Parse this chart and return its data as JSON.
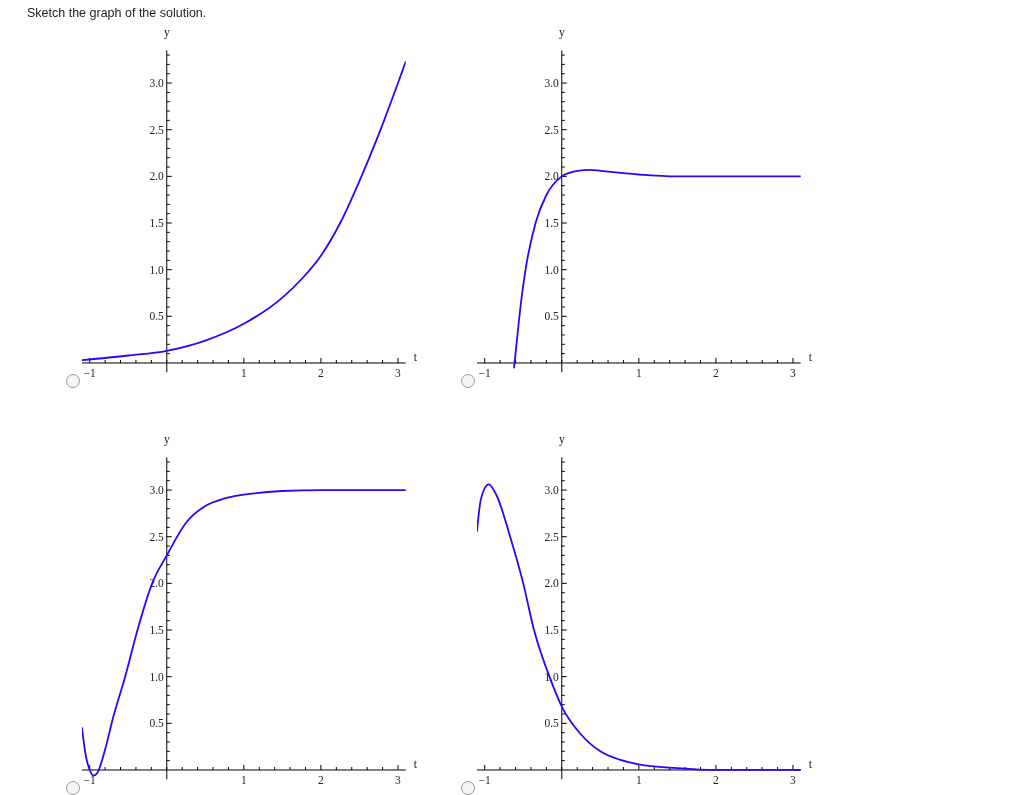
{
  "chart_data": [
    {
      "type": "line",
      "title": "Sketch the graph of the solution.",
      "xlabel": "t",
      "ylabel": "y",
      "xlim": [
        -1.1,
        3.1
      ],
      "ylim": [
        -0.1,
        3.35
      ],
      "grid": false,
      "marker": "none",
      "line_style": "solid",
      "xticks": [
        {
          "value": -1,
          "label": "−1"
        },
        {
          "value": -0.8,
          "label": null
        },
        {
          "value": -0.6,
          "label": null
        },
        {
          "value": -0.4,
          "label": null
        },
        {
          "value": -0.2,
          "label": null
        },
        {
          "value": 0,
          "label": null
        },
        {
          "value": 0.2,
          "label": null
        },
        {
          "value": 0.4,
          "label": null
        },
        {
          "value": 0.6,
          "label": null
        },
        {
          "value": 0.8,
          "label": null
        },
        1,
        {
          "value": 1.2,
          "label": null
        },
        {
          "value": 1.4,
          "label": null
        },
        {
          "value": 1.6,
          "label": null
        },
        {
          "value": 1.8,
          "label": null
        },
        2,
        {
          "value": 2.2,
          "label": null
        },
        {
          "value": 2.4,
          "label": null
        },
        {
          "value": 2.6,
          "label": null
        },
        {
          "value": 2.8,
          "label": null
        },
        3
      ],
      "yticks": [
        {
          "value": 0.1,
          "label": null
        },
        {
          "value": 0.2,
          "label": null
        },
        {
          "value": 0.3,
          "label": null
        },
        {
          "value": 0.4,
          "label": null
        },
        0.5,
        {
          "value": 0.6,
          "label": null
        },
        {
          "value": 0.7,
          "label": null
        },
        {
          "value": 0.8,
          "label": null
        },
        {
          "value": 0.9,
          "label": null
        },
        {
          "value": 1,
          "label": "1.0"
        },
        {
          "value": 1.1,
          "label": null
        },
        {
          "value": 1.2,
          "label": null
        },
        {
          "value": 1.3,
          "label": null
        },
        {
          "value": 1.4,
          "label": null
        },
        1.5,
        {
          "value": 1.6,
          "label": null
        },
        {
          "value": 1.7,
          "label": null
        },
        {
          "value": 1.8,
          "label": null
        },
        {
          "value": 1.9,
          "label": null
        },
        {
          "value": 2,
          "label": "2.0"
        },
        {
          "value": 2.1,
          "label": null
        },
        {
          "value": 2.2,
          "label": null
        },
        {
          "value": 2.3,
          "label": null
        },
        {
          "value": 2.4,
          "label": null
        },
        2.5,
        {
          "value": 2.6,
          "label": null
        },
        {
          "value": 2.7,
          "label": null
        },
        {
          "value": 2.8,
          "label": null
        },
        {
          "value": 2.9,
          "label": null
        },
        {
          "value": 3,
          "label": "3.0"
        },
        {
          "value": 3.1,
          "label": null
        },
        {
          "value": 3.2,
          "label": null
        },
        {
          "value": 3.3,
          "label": null
        }
      ],
      "series": [
        {
          "color": "#3300ff",
          "x": [
            -1.1,
            -0.5,
            0,
            0.5,
            1,
            1.5,
            1.75,
            2,
            2.25,
            2.5,
            2.75,
            3,
            3.1
          ],
          "values": [
            0.03,
            0.08,
            0.13,
            0.24,
            0.42,
            0.7,
            0.9,
            1.15,
            1.5,
            1.95,
            2.45,
            3.0,
            3.23
          ]
        }
      ]
    },
    {
      "type": "line",
      "xlabel": "t",
      "ylabel": "y",
      "xlim": [
        -1.1,
        3.1
      ],
      "ylim": [
        -0.1,
        3.35
      ],
      "grid": false,
      "marker": "none",
      "line_style": "solid",
      "xticks": [
        {
          "value": -1,
          "label": "−1"
        },
        {
          "value": -0.8,
          "label": null
        },
        {
          "value": -0.6,
          "label": null
        },
        {
          "value": -0.4,
          "label": null
        },
        {
          "value": -0.2,
          "label": null
        },
        {
          "value": 0,
          "label": null
        },
        {
          "value": 0.2,
          "label": null
        },
        {
          "value": 0.4,
          "label": null
        },
        {
          "value": 0.6,
          "label": null
        },
        {
          "value": 0.8,
          "label": null
        },
        1,
        {
          "value": 1.2,
          "label": null
        },
        {
          "value": 1.4,
          "label": null
        },
        {
          "value": 1.6,
          "label": null
        },
        {
          "value": 1.8,
          "label": null
        },
        2,
        {
          "value": 2.2,
          "label": null
        },
        {
          "value": 2.4,
          "label": null
        },
        {
          "value": 2.6,
          "label": null
        },
        {
          "value": 2.8,
          "label": null
        },
        3
      ],
      "yticks": [
        {
          "value": 0.1,
          "label": null
        },
        {
          "value": 0.2,
          "label": null
        },
        {
          "value": 0.3,
          "label": null
        },
        {
          "value": 0.4,
          "label": null
        },
        0.5,
        {
          "value": 0.6,
          "label": null
        },
        {
          "value": 0.7,
          "label": null
        },
        {
          "value": 0.8,
          "label": null
        },
        {
          "value": 0.9,
          "label": null
        },
        {
          "value": 1,
          "label": "1.0"
        },
        {
          "value": 1.1,
          "label": null
        },
        {
          "value": 1.2,
          "label": null
        },
        {
          "value": 1.3,
          "label": null
        },
        {
          "value": 1.4,
          "label": null
        },
        1.5,
        {
          "value": 1.6,
          "label": null
        },
        {
          "value": 1.7,
          "label": null
        },
        {
          "value": 1.8,
          "label": null
        },
        {
          "value": 1.9,
          "label": null
        },
        {
          "value": 2,
          "label": "2.0"
        },
        {
          "value": 2.1,
          "label": null
        },
        {
          "value": 2.2,
          "label": null
        },
        {
          "value": 2.3,
          "label": null
        },
        {
          "value": 2.4,
          "label": null
        },
        2.5,
        {
          "value": 2.6,
          "label": null
        },
        {
          "value": 2.7,
          "label": null
        },
        {
          "value": 2.8,
          "label": null
        },
        {
          "value": 2.9,
          "label": null
        },
        {
          "value": 3,
          "label": "3.0"
        },
        {
          "value": 3.1,
          "label": null
        },
        {
          "value": 3.2,
          "label": null
        },
        {
          "value": 3.3,
          "label": null
        }
      ],
      "series": [
        {
          "color": "#3300ff",
          "x": [
            -0.62,
            -0.6,
            -0.55,
            -0.47,
            -0.34,
            -0.2,
            0,
            0.15,
            0.35,
            0.6,
            1,
            1.5,
            2,
            3.1
          ],
          "values": [
            -0.05,
            0.1,
            0.5,
            1.0,
            1.5,
            1.8,
            2.0,
            2.05,
            2.07,
            2.05,
            2.02,
            2.0,
            2.0,
            2.0
          ]
        }
      ]
    },
    {
      "type": "line",
      "xlabel": "t",
      "ylabel": "y",
      "xlim": [
        -1.1,
        3.1
      ],
      "ylim": [
        -0.1,
        3.35
      ],
      "grid": false,
      "marker": "none",
      "line_style": "solid",
      "xticks": [
        {
          "value": -1,
          "label": "−1"
        },
        {
          "value": -0.8,
          "label": null
        },
        {
          "value": -0.6,
          "label": null
        },
        {
          "value": -0.4,
          "label": null
        },
        {
          "value": -0.2,
          "label": null
        },
        {
          "value": 0,
          "label": null
        },
        {
          "value": 0.2,
          "label": null
        },
        {
          "value": 0.4,
          "label": null
        },
        {
          "value": 0.6,
          "label": null
        },
        {
          "value": 0.8,
          "label": null
        },
        1,
        {
          "value": 1.2,
          "label": null
        },
        {
          "value": 1.4,
          "label": null
        },
        {
          "value": 1.6,
          "label": null
        },
        {
          "value": 1.8,
          "label": null
        },
        2,
        {
          "value": 2.2,
          "label": null
        },
        {
          "value": 2.4,
          "label": null
        },
        {
          "value": 2.6,
          "label": null
        },
        {
          "value": 2.8,
          "label": null
        },
        3
      ],
      "yticks": [
        {
          "value": 0.1,
          "label": null
        },
        {
          "value": 0.2,
          "label": null
        },
        {
          "value": 0.3,
          "label": null
        },
        {
          "value": 0.4,
          "label": null
        },
        0.5,
        {
          "value": 0.6,
          "label": null
        },
        {
          "value": 0.7,
          "label": null
        },
        {
          "value": 0.8,
          "label": null
        },
        {
          "value": 0.9,
          "label": null
        },
        {
          "value": 1,
          "label": "1.0"
        },
        {
          "value": 1.1,
          "label": null
        },
        {
          "value": 1.2,
          "label": null
        },
        {
          "value": 1.3,
          "label": null
        },
        {
          "value": 1.4,
          "label": null
        },
        1.5,
        {
          "value": 1.6,
          "label": null
        },
        {
          "value": 1.7,
          "label": null
        },
        {
          "value": 1.8,
          "label": null
        },
        {
          "value": 1.9,
          "label": null
        },
        {
          "value": 2,
          "label": "2.0"
        },
        {
          "value": 2.1,
          "label": null
        },
        {
          "value": 2.2,
          "label": null
        },
        {
          "value": 2.3,
          "label": null
        },
        {
          "value": 2.4,
          "label": null
        },
        2.5,
        {
          "value": 2.6,
          "label": null
        },
        {
          "value": 2.7,
          "label": null
        },
        {
          "value": 2.8,
          "label": null
        },
        {
          "value": 2.9,
          "label": null
        },
        {
          "value": 3,
          "label": "3.0"
        },
        {
          "value": 3.1,
          "label": null
        },
        {
          "value": 3.2,
          "label": null
        },
        {
          "value": 3.3,
          "label": null
        }
      ],
      "series": [
        {
          "color": "#3300ff",
          "x": [
            -1.1,
            -1.05,
            -1.0,
            -0.95,
            -0.9,
            -0.8,
            -0.7,
            -0.54,
            -0.38,
            -0.19,
            0,
            0.25,
            0.5,
            0.75,
            1,
            1.5,
            2,
            3.1
          ],
          "values": [
            0.45,
            0.15,
            0.0,
            -0.06,
            -0.03,
            0.22,
            0.55,
            1.0,
            1.5,
            2.0,
            2.3,
            2.65,
            2.83,
            2.91,
            2.95,
            2.99,
            3.0,
            3.0
          ]
        }
      ]
    },
    {
      "type": "line",
      "xlabel": "t",
      "ylabel": "y",
      "xlim": [
        -1.1,
        3.1
      ],
      "ylim": [
        -0.1,
        3.35
      ],
      "grid": false,
      "marker": "none",
      "line_style": "solid",
      "xticks": [
        {
          "value": -1,
          "label": "−1"
        },
        {
          "value": -0.8,
          "label": null
        },
        {
          "value": -0.6,
          "label": null
        },
        {
          "value": -0.4,
          "label": null
        },
        {
          "value": -0.2,
          "label": null
        },
        {
          "value": 0,
          "label": null
        },
        {
          "value": 0.2,
          "label": null
        },
        {
          "value": 0.4,
          "label": null
        },
        {
          "value": 0.6,
          "label": null
        },
        {
          "value": 0.8,
          "label": null
        },
        1,
        {
          "value": 1.2,
          "label": null
        },
        {
          "value": 1.4,
          "label": null
        },
        {
          "value": 1.6,
          "label": null
        },
        {
          "value": 1.8,
          "label": null
        },
        2,
        {
          "value": 2.2,
          "label": null
        },
        {
          "value": 2.4,
          "label": null
        },
        {
          "value": 2.6,
          "label": null
        },
        {
          "value": 2.8,
          "label": null
        },
        3
      ],
      "yticks": [
        {
          "value": 0.1,
          "label": null
        },
        {
          "value": 0.2,
          "label": null
        },
        {
          "value": 0.3,
          "label": null
        },
        {
          "value": 0.4,
          "label": null
        },
        0.5,
        {
          "value": 0.6,
          "label": null
        },
        {
          "value": 0.7,
          "label": null
        },
        {
          "value": 0.8,
          "label": null
        },
        {
          "value": 0.9,
          "label": null
        },
        {
          "value": 1,
          "label": "1.0"
        },
        {
          "value": 1.1,
          "label": null
        },
        {
          "value": 1.2,
          "label": null
        },
        {
          "value": 1.3,
          "label": null
        },
        {
          "value": 1.4,
          "label": null
        },
        1.5,
        {
          "value": 1.6,
          "label": null
        },
        {
          "value": 1.7,
          "label": null
        },
        {
          "value": 1.8,
          "label": null
        },
        {
          "value": 1.9,
          "label": null
        },
        {
          "value": 2,
          "label": "2.0"
        },
        {
          "value": 2.1,
          "label": null
        },
        {
          "value": 2.2,
          "label": null
        },
        {
          "value": 2.3,
          "label": null
        },
        {
          "value": 2.4,
          "label": null
        },
        2.5,
        {
          "value": 2.6,
          "label": null
        },
        {
          "value": 2.7,
          "label": null
        },
        {
          "value": 2.8,
          "label": null
        },
        {
          "value": 2.9,
          "label": null
        },
        {
          "value": 3,
          "label": "3.0"
        },
        {
          "value": 3.1,
          "label": null
        },
        {
          "value": 3.2,
          "label": null
        },
        {
          "value": 3.3,
          "label": null
        }
      ],
      "series": [
        {
          "color": "#3300ff",
          "x": [
            -1.1,
            -1.05,
            -0.95,
            -0.85,
            -0.67,
            -0.5,
            -0.36,
            -0.16,
            0,
            0.25,
            0.5,
            0.75,
            1,
            1.5,
            2,
            3.1
          ],
          "values": [
            2.56,
            2.9,
            3.06,
            2.95,
            2.5,
            2.0,
            1.5,
            1.0,
            0.68,
            0.38,
            0.2,
            0.11,
            0.06,
            0.02,
            0.0,
            0.0
          ]
        }
      ]
    }
  ]
}
